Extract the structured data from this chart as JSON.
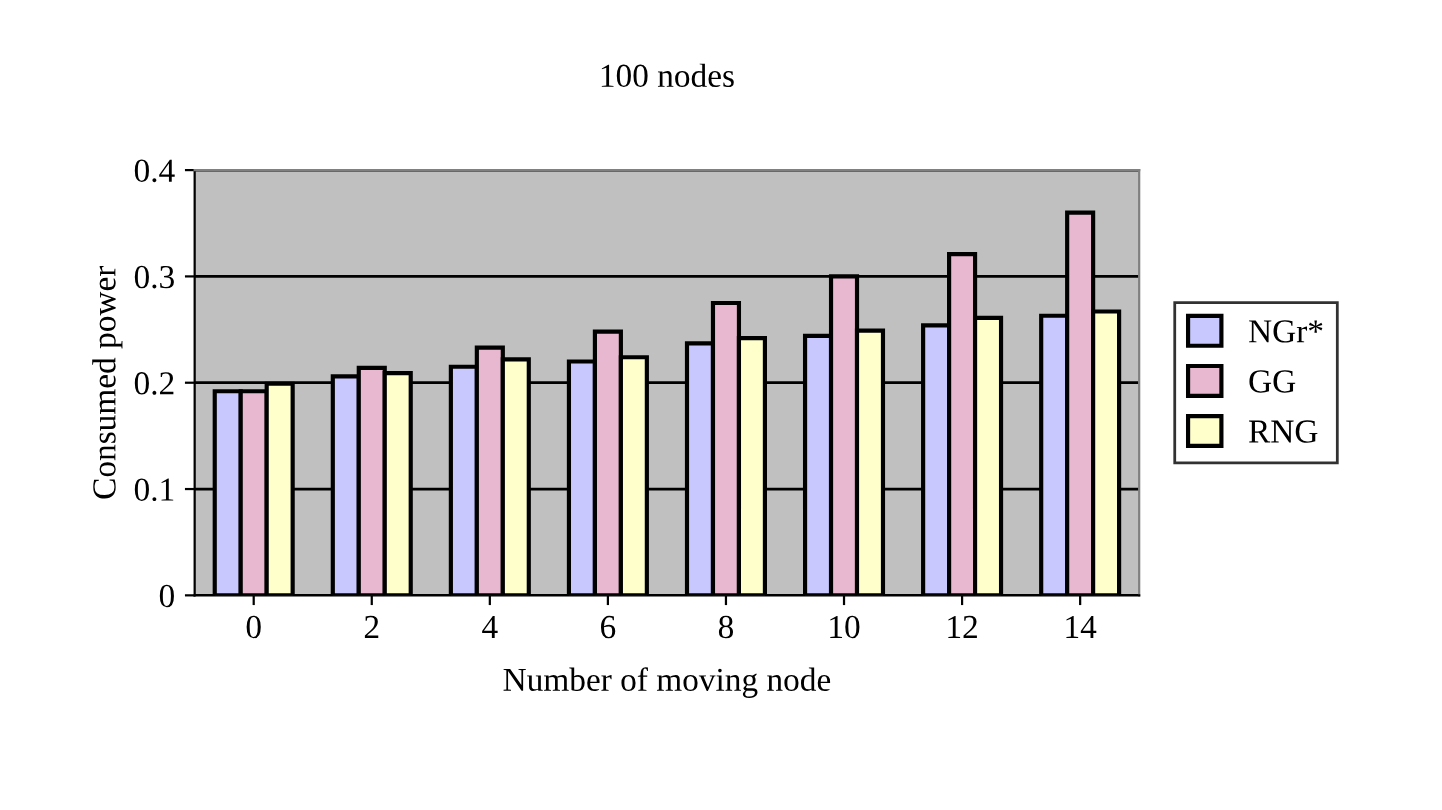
{
  "chart_data": {
    "type": "bar",
    "title": "100 nodes",
    "xlabel": "Number of moving node",
    "ylabel": "Consumed power",
    "categories": [
      "0",
      "2",
      "4",
      "6",
      "8",
      "10",
      "12",
      "14"
    ],
    "series": [
      {
        "name": "NGr*",
        "color": "#c8c8ff",
        "values": [
          0.192,
          0.206,
          0.215,
          0.22,
          0.237,
          0.244,
          0.254,
          0.263
        ]
      },
      {
        "name": "GG",
        "color": "#e8b8d0",
        "values": [
          0.192,
          0.214,
          0.233,
          0.248,
          0.275,
          0.3,
          0.321,
          0.36
        ]
      },
      {
        "name": "RNG",
        "color": "#ffffcc",
        "values": [
          0.199,
          0.209,
          0.222,
          0.224,
          0.242,
          0.249,
          0.261,
          0.267
        ]
      }
    ],
    "ylim": [
      0,
      0.4
    ],
    "yticks": [
      0,
      0.1,
      0.2,
      0.3,
      0.4
    ],
    "grid": "y",
    "legend": "right"
  }
}
